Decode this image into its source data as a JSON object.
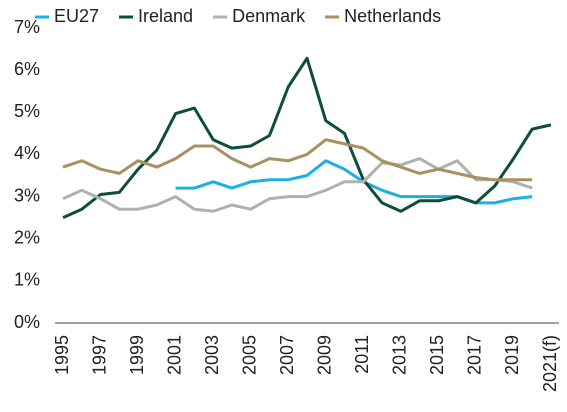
{
  "chart_data": {
    "type": "line",
    "categories": [
      "1995",
      null,
      "1997",
      null,
      "1999",
      null,
      "2001",
      null,
      "2003",
      null,
      "2005",
      null,
      "2007",
      null,
      "2009",
      null,
      "2011",
      null,
      "2013",
      null,
      "2015",
      null,
      "2017",
      null,
      "2019",
      null,
      "2021(f)"
    ],
    "series": [
      {
        "name": "EU27",
        "color": "#1ab0e6",
        "values": [
          null,
          null,
          null,
          null,
          null,
          null,
          3.2,
          3.2,
          3.35,
          3.2,
          3.35,
          3.4,
          3.4,
          3.5,
          3.85,
          3.65,
          3.35,
          3.15,
          3.0,
          3.0,
          3.0,
          3.0,
          2.85,
          2.85,
          2.95,
          3.0,
          null
        ]
      },
      {
        "name": "Ireland",
        "color": "#0e4d3c",
        "values": [
          2.5,
          2.7,
          3.05,
          3.1,
          3.65,
          4.1,
          4.97,
          5.1,
          4.35,
          4.15,
          4.2,
          4.45,
          5.6,
          6.28,
          4.8,
          4.5,
          3.4,
          2.85,
          2.65,
          2.9,
          2.9,
          3.0,
          2.85,
          3.25,
          3.9,
          4.6,
          4.7
        ]
      },
      {
        "name": "Denmark",
        "color": "#b0b0b0",
        "values": [
          2.95,
          3.15,
          2.95,
          2.7,
          2.7,
          2.8,
          3.0,
          2.7,
          2.65,
          2.8,
          2.7,
          2.95,
          3.0,
          3.0,
          3.15,
          3.35,
          3.35,
          3.8,
          3.75,
          3.9,
          3.65,
          3.85,
          3.4,
          3.4,
          3.35,
          3.2,
          null
        ]
      },
      {
        "name": "Netherlands",
        "color": "#a89060",
        "values": [
          3.7,
          3.85,
          3.65,
          3.55,
          3.85,
          3.7,
          3.9,
          4.2,
          4.2,
          3.9,
          3.7,
          3.9,
          3.85,
          4.0,
          4.35,
          4.25,
          4.15,
          3.85,
          3.7,
          3.55,
          3.65,
          3.55,
          3.45,
          3.4,
          3.4,
          3.4,
          null
        ]
      }
    ],
    "ylim": [
      0,
      7
    ],
    "yticks": [
      {
        "value": 0,
        "label": "0%"
      },
      {
        "value": 1,
        "label": "1%"
      },
      {
        "value": 2,
        "label": "2%"
      },
      {
        "value": 3,
        "label": "3%"
      },
      {
        "value": 4,
        "label": "4%"
      },
      {
        "value": 5,
        "label": "5%"
      },
      {
        "value": 6,
        "label": "6%"
      },
      {
        "value": 7,
        "label": "7%"
      }
    ],
    "grid": false,
    "legend": "top"
  }
}
